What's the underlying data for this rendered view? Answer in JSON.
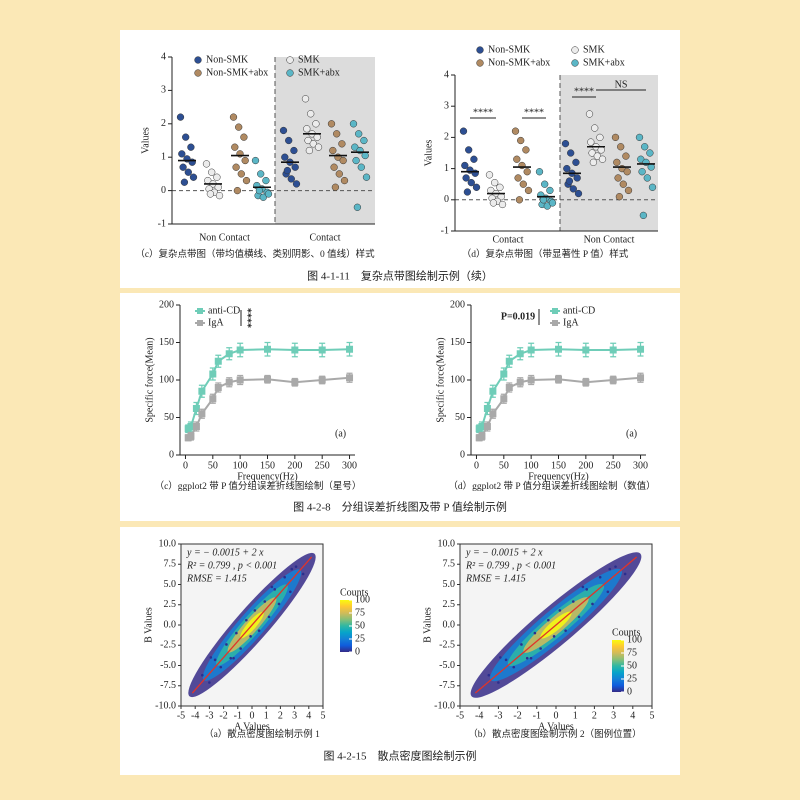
{
  "captions": [
    "（c）复杂点带图（带均值横线、类别阴影、0 值线）样式",
    "（d）复杂点带图（带显著性 P 值）样式",
    "（c）ggplot2 带 P 值分组误差折线图绘制（星号）",
    "（d）ggplot2 带 P 值分组误差折线图绘制（数值）",
    "（a）散点密度图绘制示例 1",
    "（b）散点密度图绘制示例 2（图例位置）"
  ],
  "figure_titles": [
    "图 4-1-11　复杂点带图绘制示例（续）",
    "图 4-2-8　分组误差折线图及带 P 值绘制示例",
    "图 4-2-15　散点密度图绘制示例"
  ],
  "chart_data": [
    {
      "type": "strip",
      "y_label": "Values",
      "ylim": [
        -1,
        4
      ],
      "yticks": [
        -1,
        0,
        1,
        2,
        3,
        4
      ],
      "groups": [
        "Non Contact",
        "Contact"
      ],
      "series": [
        {
          "name": "Non-SMK",
          "color": "#2d4f93",
          "values": [
            [
              2.2,
              1.6,
              1.3,
              1.1,
              0.95,
              0.85,
              0.7,
              0.55,
              0.4,
              0.25
            ],
            [
              1.8,
              1.5,
              1.2,
              1.0,
              0.85,
              0.7,
              0.5,
              0.35,
              0.2,
              0.6
            ]
          ],
          "means": [
            0.9,
            0.85
          ]
        },
        {
          "name": "SMK",
          "color": "#ececec",
          "values": [
            [
              0.8,
              0.55,
              0.4,
              0.3,
              0.2,
              0.1,
              0.05,
              -0.05,
              -0.15,
              -0.1
            ],
            [
              2.75,
              2.3,
              2.0,
              1.85,
              1.7,
              1.6,
              1.5,
              1.4,
              1.3,
              1.2
            ]
          ],
          "means": [
            0.2,
            1.7
          ]
        },
        {
          "name": "Non-SMK+abx",
          "color": "#b08a62",
          "values": [
            [
              2.2,
              1.9,
              1.6,
              1.3,
              1.1,
              0.9,
              0.7,
              0.5,
              0.3,
              0.0
            ],
            [
              2.0,
              1.7,
              1.4,
              1.2,
              1.0,
              0.9,
              0.7,
              0.5,
              0.3,
              0.1
            ]
          ],
          "means": [
            1.05,
            1.05
          ]
        },
        {
          "name": "SMK+abx",
          "color": "#5bb6c6",
          "values": [
            [
              0.9,
              0.5,
              0.3,
              0.15,
              0.05,
              -0.05,
              -0.15,
              -0.2,
              -0.1,
              0.0
            ],
            [
              2.0,
              1.7,
              1.5,
              1.3,
              1.2,
              1.05,
              0.9,
              0.7,
              0.4,
              -0.5
            ]
          ],
          "means": [
            0.1,
            1.15
          ]
        }
      ]
    },
    {
      "type": "strip",
      "y_label": "Values",
      "ylim": [
        -1,
        4
      ],
      "yticks": [
        -1,
        0,
        1,
        2,
        3,
        4
      ],
      "groups": [
        "Contact",
        "Non Contact"
      ],
      "series": [
        {
          "name": "Non-SMK",
          "color": "#2d4f93",
          "values": [
            [
              2.2,
              1.6,
              1.3,
              1.1,
              0.95,
              0.85,
              0.7,
              0.55,
              0.4,
              0.25
            ],
            [
              1.8,
              1.5,
              1.2,
              1.0,
              0.85,
              0.7,
              0.5,
              0.35,
              0.2,
              0.6
            ]
          ],
          "means": [
            0.9,
            0.85
          ]
        },
        {
          "name": "SMK",
          "color": "#ececec",
          "values": [
            [
              0.8,
              0.55,
              0.4,
              0.3,
              0.2,
              0.1,
              0.05,
              -0.05,
              -0.15,
              -0.1
            ],
            [
              2.75,
              2.3,
              2.0,
              1.85,
              1.7,
              1.6,
              1.5,
              1.4,
              1.3,
              1.2
            ]
          ],
          "means": [
            0.2,
            1.7
          ]
        },
        {
          "name": "Non-SMK+abx",
          "color": "#b08a62",
          "values": [
            [
              2.2,
              1.9,
              1.6,
              1.3,
              1.1,
              0.9,
              0.7,
              0.5,
              0.3,
              0.0
            ],
            [
              2.0,
              1.7,
              1.4,
              1.2,
              1.0,
              0.9,
              0.7,
              0.5,
              0.3,
              0.1
            ]
          ],
          "means": [
            1.05,
            1.05
          ]
        },
        {
          "name": "SMK+abx",
          "color": "#5bb6c6",
          "values": [
            [
              0.9,
              0.5,
              0.3,
              0.15,
              0.05,
              -0.05,
              -0.15,
              -0.2,
              -0.1,
              0.0
            ],
            [
              2.0,
              1.7,
              1.5,
              1.3,
              1.2,
              1.05,
              0.9,
              0.7,
              0.4,
              -0.5
            ]
          ],
          "means": [
            0.1,
            1.15
          ]
        }
      ],
      "significance": [
        "****",
        "****",
        "****",
        "NS"
      ]
    },
    {
      "type": "line",
      "x_label": "Frequency(Hz)",
      "y_label": "Specific force(Mean)",
      "xlim": [
        -10,
        310
      ],
      "xticks": [
        0,
        50,
        100,
        150,
        200,
        250,
        300
      ],
      "ylim": [
        0,
        200
      ],
      "yticks": [
        0,
        50,
        100,
        150,
        200
      ],
      "x": [
        5,
        10,
        20,
        30,
        50,
        60,
        80,
        100,
        150,
        200,
        250,
        300
      ],
      "series": [
        {
          "name": "anti-CD",
          "color": "#6fcdb8",
          "values": [
            35,
            38,
            62,
            85,
            108,
            125,
            135,
            140,
            141,
            140,
            140,
            141
          ],
          "errors": [
            5,
            6,
            8,
            8,
            8,
            8,
            8,
            9,
            9,
            9,
            9,
            9
          ]
        },
        {
          "name": "IgA",
          "color": "#a9a9a9",
          "values": [
            23,
            25,
            38,
            55,
            75,
            90,
            97,
            100,
            101,
            97,
            100,
            103
          ],
          "errors": [
            4,
            5,
            6,
            6,
            6,
            6,
            6,
            6,
            5,
            5,
            5,
            6
          ]
        }
      ],
      "p_label": "****",
      "panel_label": "(a)"
    },
    {
      "type": "line",
      "x_label": "Frequency(Hz)",
      "y_label": "Specific force(Mean)",
      "xlim": [
        -10,
        310
      ],
      "xticks": [
        0,
        50,
        100,
        150,
        200,
        250,
        300
      ],
      "ylim": [
        0,
        200
      ],
      "yticks": [
        0,
        50,
        100,
        150,
        200
      ],
      "x": [
        5,
        10,
        20,
        30,
        50,
        60,
        80,
        100,
        150,
        200,
        250,
        300
      ],
      "series": [
        {
          "name": "anti-CD",
          "color": "#6fcdb8",
          "values": [
            35,
            38,
            62,
            85,
            108,
            125,
            135,
            140,
            141,
            140,
            140,
            141
          ],
          "errors": [
            5,
            6,
            8,
            8,
            8,
            8,
            8,
            9,
            9,
            9,
            9,
            9
          ]
        },
        {
          "name": "IgA",
          "color": "#a9a9a9",
          "values": [
            23,
            25,
            38,
            55,
            75,
            90,
            97,
            100,
            101,
            97,
            100,
            103
          ],
          "errors": [
            4,
            5,
            6,
            6,
            6,
            6,
            6,
            6,
            5,
            5,
            5,
            6
          ]
        }
      ],
      "p_label": "P=0.019",
      "panel_label": "(a)"
    },
    {
      "type": "scatter",
      "x_label": "A Values",
      "y_label": "B Values",
      "xlim": [
        -5,
        5
      ],
      "xticks": [
        -5,
        -4,
        -3,
        -2,
        -1,
        0,
        1,
        2,
        3,
        4,
        5
      ],
      "ylim": [
        -10,
        10
      ],
      "yticks": [
        {
          "value": -10,
          "label": "-10.0"
        },
        {
          "value": -7.5,
          "label": "-7.5"
        },
        {
          "value": -5,
          "label": "-5.0"
        },
        {
          "value": -2.5,
          "label": "-2.5"
        },
        {
          "value": 0,
          "label": "0.0"
        },
        {
          "value": 2.5,
          "label": "2.5"
        },
        {
          "value": 5,
          "label": "5.0"
        },
        {
          "value": 7.5,
          "label": "7.5"
        },
        {
          "value": 10,
          "label": "10.0"
        }
      ],
      "x": [
        -3.5,
        -3,
        -2.6,
        -2.2,
        -1.8,
        -1.5,
        -1.1,
        -0.8,
        -0.4,
        -0.1,
        0.2,
        0.5,
        0.9,
        1.2,
        1.6,
        1.9,
        2.3,
        2.7,
        3.1,
        3.6,
        -2.9,
        2.8,
        -1.3,
        1.4
      ],
      "values": [
        -6.2,
        -7.1,
        -4.3,
        -5.2,
        -2.4,
        -4.1,
        -1.0,
        -2.9,
        0.6,
        -1.4,
        1.8,
        -0.7,
        2.9,
        1.0,
        4.4,
        2.6,
        5.9,
        4.1,
        7.2,
        6.3,
        -4.0,
        6.9,
        -4.1,
        4.7
      ],
      "color": "#2a2f8f",
      "fit": {
        "intercept": -0.0015,
        "slope": 2,
        "color": "#e0342a"
      },
      "annotations": [
        "y = − 0.0015 + 2 x",
        "R² = 0.799 , p < 0.001",
        "RMSE = 1.415"
      ],
      "colorbar": {
        "title": "Counts",
        "clim": [
          0,
          100
        ],
        "ticks": [
          0,
          25,
          50,
          75,
          100
        ],
        "colors": [
          "#352a87",
          "#0f5cdd",
          "#1481d6",
          "#06a4ca",
          "#2eb7a4",
          "#87bf77",
          "#d1bb59",
          "#fec832",
          "#f9fb0e"
        ]
      }
    },
    {
      "type": "scatter",
      "x_label": "A Values",
      "y_label": "B Values",
      "xlim": [
        -5,
        5
      ],
      "xticks": [
        -5,
        -4,
        -3,
        -2,
        -1,
        0,
        1,
        2,
        3,
        4,
        5
      ],
      "ylim": [
        -10,
        10
      ],
      "yticks": [
        {
          "value": -10,
          "label": "-10.0"
        },
        {
          "value": -7.5,
          "label": "-7.5"
        },
        {
          "value": -5,
          "label": "-5.0"
        },
        {
          "value": -2.5,
          "label": "-2.5"
        },
        {
          "value": 0,
          "label": "0.0"
        },
        {
          "value": 2.5,
          "label": "2.5"
        },
        {
          "value": 5,
          "label": "5.0"
        },
        {
          "value": 7.5,
          "label": "7.5"
        },
        {
          "value": 10,
          "label": "10.0"
        }
      ],
      "x": [
        -3.5,
        -3,
        -2.6,
        -2.2,
        -1.8,
        -1.5,
        -1.1,
        -0.8,
        -0.4,
        -0.1,
        0.2,
        0.5,
        0.9,
        1.2,
        1.6,
        1.9,
        2.3,
        2.7,
        3.1,
        3.6,
        -2.9,
        2.8,
        -1.3,
        1.4
      ],
      "values": [
        -6.2,
        -7.1,
        -4.3,
        -5.2,
        -2.4,
        -4.1,
        -1.0,
        -2.9,
        0.6,
        -1.4,
        1.8,
        -0.7,
        2.9,
        1.0,
        4.4,
        2.6,
        5.9,
        4.1,
        7.2,
        6.3,
        -4.0,
        6.9,
        -4.1,
        4.7
      ],
      "color": "#2a2f8f",
      "fit": {
        "intercept": -0.0015,
        "slope": 2,
        "color": "#e0342a"
      },
      "annotations": [
        "y = − 0.0015 + 2 x",
        "R² = 0.799 , p < 0.001",
        "RMSE = 1.415"
      ],
      "colorbar": {
        "title": "Counts",
        "clim": [
          0,
          100
        ],
        "ticks": [
          0,
          25,
          50,
          75,
          100
        ],
        "colors": [
          "#352a87",
          "#0f5cdd",
          "#1481d6",
          "#06a4ca",
          "#2eb7a4",
          "#87bf77",
          "#d1bb59",
          "#fec832",
          "#f9fb0e"
        ]
      }
    }
  ]
}
